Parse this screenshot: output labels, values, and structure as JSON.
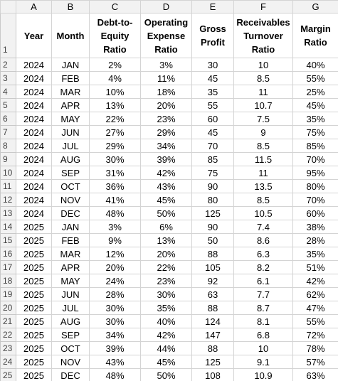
{
  "sheet": {
    "column_letters": [
      "A",
      "B",
      "C",
      "D",
      "E",
      "F",
      "G"
    ],
    "header_row_number": "1",
    "headers": [
      [
        "Year"
      ],
      [
        "Month"
      ],
      [
        "Debt-to-",
        "Equity",
        "Ratio"
      ],
      [
        "Operating",
        "Expense",
        "Ratio"
      ],
      [
        "Gross",
        "Profit"
      ],
      [
        "Receivables",
        "Turnover",
        "Ratio"
      ],
      [
        "Margin",
        "Ratio"
      ]
    ],
    "rows": [
      [
        "2",
        "2024",
        "JAN",
        "2%",
        "3%",
        "30",
        "10",
        "40%"
      ],
      [
        "3",
        "2024",
        "FEB",
        "4%",
        "11%",
        "45",
        "8.5",
        "55%"
      ],
      [
        "4",
        "2024",
        "MAR",
        "10%",
        "18%",
        "35",
        "11",
        "25%"
      ],
      [
        "5",
        "2024",
        "APR",
        "13%",
        "20%",
        "55",
        "10.7",
        "45%"
      ],
      [
        "6",
        "2024",
        "MAY",
        "22%",
        "23%",
        "60",
        "7.5",
        "35%"
      ],
      [
        "7",
        "2024",
        "JUN",
        "27%",
        "29%",
        "45",
        "9",
        "75%"
      ],
      [
        "8",
        "2024",
        "JUL",
        "29%",
        "34%",
        "70",
        "8.5",
        "85%"
      ],
      [
        "9",
        "2024",
        "AUG",
        "30%",
        "39%",
        "85",
        "11.5",
        "70%"
      ],
      [
        "10",
        "2024",
        "SEP",
        "31%",
        "42%",
        "75",
        "11",
        "95%"
      ],
      [
        "11",
        "2024",
        "OCT",
        "36%",
        "43%",
        "90",
        "13.5",
        "80%"
      ],
      [
        "12",
        "2024",
        "NOV",
        "41%",
        "45%",
        "80",
        "8.5",
        "70%"
      ],
      [
        "13",
        "2024",
        "DEC",
        "48%",
        "50%",
        "125",
        "10.5",
        "60%"
      ],
      [
        "14",
        "2025",
        "JAN",
        "3%",
        "6%",
        "90",
        "7.4",
        "38%"
      ],
      [
        "15",
        "2025",
        "FEB",
        "9%",
        "13%",
        "50",
        "8.6",
        "28%"
      ],
      [
        "16",
        "2025",
        "MAR",
        "12%",
        "20%",
        "88",
        "6.3",
        "35%"
      ],
      [
        "17",
        "2025",
        "APR",
        "20%",
        "22%",
        "105",
        "8.2",
        "51%"
      ],
      [
        "18",
        "2025",
        "MAY",
        "24%",
        "23%",
        "92",
        "6.1",
        "42%"
      ],
      [
        "19",
        "2025",
        "JUN",
        "28%",
        "30%",
        "63",
        "7.7",
        "62%"
      ],
      [
        "20",
        "2025",
        "JUL",
        "30%",
        "35%",
        "88",
        "8.7",
        "47%"
      ],
      [
        "21",
        "2025",
        "AUG",
        "30%",
        "40%",
        "124",
        "8.1",
        "55%"
      ],
      [
        "22",
        "2025",
        "SEP",
        "34%",
        "42%",
        "147",
        "6.8",
        "72%"
      ],
      [
        "23",
        "2025",
        "OCT",
        "39%",
        "44%",
        "88",
        "10",
        "78%"
      ],
      [
        "24",
        "2025",
        "NOV",
        "43%",
        "45%",
        "125",
        "9.1",
        "57%"
      ],
      [
        "25",
        "2025",
        "DEC",
        "48%",
        "50%",
        "108",
        "10.9",
        "63%"
      ]
    ]
  }
}
